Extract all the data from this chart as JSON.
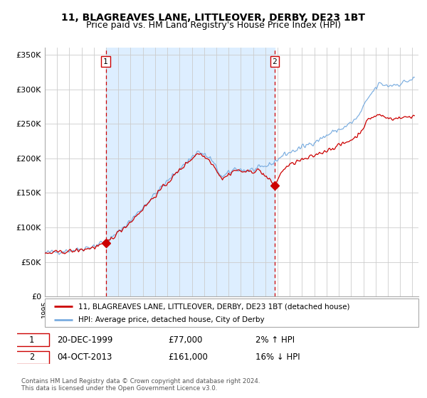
{
  "title1": "11, BLAGREAVES LANE, LITTLEOVER, DERBY, DE23 1BT",
  "title2": "Price paid vs. HM Land Registry's House Price Index (HPI)",
  "ylabel_ticks": [
    "£0",
    "£50K",
    "£100K",
    "£150K",
    "£200K",
    "£250K",
    "£300K",
    "£350K"
  ],
  "ytick_vals": [
    0,
    50000,
    100000,
    150000,
    200000,
    250000,
    300000,
    350000
  ],
  "ylim": [
    0,
    360000
  ],
  "xlim_start": 1995.0,
  "xlim_end": 2025.5,
  "sale1_year": 1999.97,
  "sale1_price": 77000,
  "sale2_year": 2013.75,
  "sale2_price": 161000,
  "line_color_property": "#cc0000",
  "line_color_hpi": "#7aade0",
  "dot_color": "#cc0000",
  "dashed_line_color": "#cc0000",
  "bg_shaded_color": "#ddeeff",
  "grid_color": "#cccccc",
  "legend_label1": "11, BLAGREAVES LANE, LITTLEOVER, DERBY, DE23 1BT (detached house)",
  "legend_label2": "HPI: Average price, detached house, City of Derby",
  "annotation1_date": "20-DEC-1999",
  "annotation1_price": "£77,000",
  "annotation1_hpi": "2% ↑ HPI",
  "annotation2_date": "04-OCT-2013",
  "annotation2_price": "£161,000",
  "annotation2_hpi": "16% ↓ HPI",
  "footnote1": "Contains HM Land Registry data © Crown copyright and database right 2024.",
  "footnote2": "This data is licensed under the Open Government Licence v3.0.",
  "title_fontsize": 10,
  "subtitle_fontsize": 9
}
